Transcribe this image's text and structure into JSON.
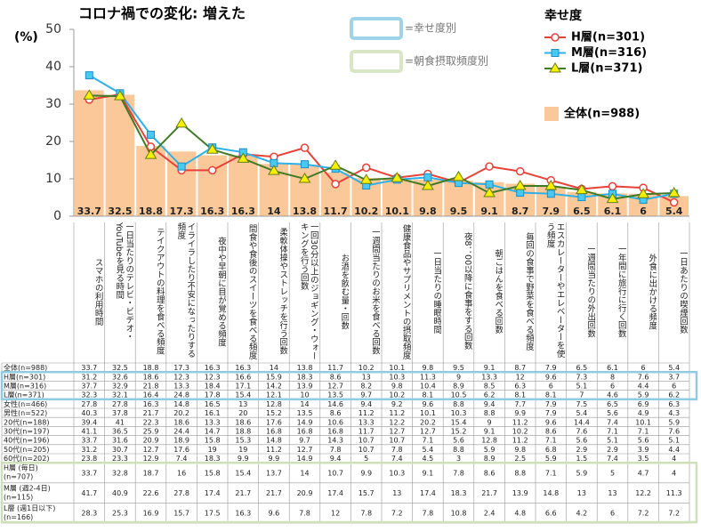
{
  "chart_data": {
    "type": "bar",
    "title": "コロナ禍での変化: 増えた",
    "y_label": "(%)",
    "categories": [
      "スマホの利用時間",
      "一日当たりのテレビ・ビデオ・YouTubeを見る時間",
      "テイクアウトの料理を食べる頻度",
      "イライラしたり不安になったりする頻度",
      "夜中や早朝に目が覚める頻度",
      "間食や食後のスイーツを食べる頻度",
      "柔軟体操やストレッチを行う回数",
      "一回30分以上のジョギング・ウォーキングを行う回数",
      "お酒を飲む量・回数",
      "一週間当たりのお米を食べる回数",
      "健康食品やサプリメントの摂取頻度",
      "一日当たりの睡眠時間",
      "夜8：00以降に食事をする回数",
      "朝ごはんを食べる回数",
      "毎回の食事で野菜を食べる頻度",
      "エスカレーターやエレベーターを使う頻度",
      "一週間当たりの外出回数",
      "一年間に旅行に行く回数",
      "外食に出かける頻度",
      "一日あたりの喫煙回数"
    ],
    "ylim": [
      0,
      50
    ],
    "yticks": [
      0,
      10,
      20,
      30,
      40,
      50
    ],
    "bar": {
      "name": "全体(n=988)",
      "color": "#fbc999",
      "values": [
        33.7,
        32.5,
        18.8,
        17.3,
        16.3,
        16.3,
        14,
        13.8,
        11.7,
        10.2,
        10.1,
        9.8,
        9.5,
        9.1,
        8.7,
        7.9,
        6.5,
        6.1,
        6,
        5.4
      ]
    },
    "legend_title": "幸せ度",
    "series": [
      {
        "name": "H層(n=301)",
        "color": "#e8413a",
        "marker": "circle",
        "values": [
          31.2,
          32.6,
          18.6,
          12.3,
          12.3,
          16.6,
          15.9,
          18.3,
          8.6,
          13,
          10.3,
          11.3,
          9,
          13.3,
          12,
          9.6,
          7.3,
          8,
          7.6,
          3.7
        ]
      },
      {
        "name": "M層(n=316)",
        "color": "#2fb0e6",
        "marker": "square",
        "values": [
          37.7,
          32.9,
          21.8,
          13.3,
          18.4,
          17.1,
          14.2,
          13.9,
          12.7,
          8.2,
          9.8,
          10.4,
          8.9,
          8.5,
          6.3,
          6,
          5.1,
          6,
          4.4,
          6
        ]
      },
      {
        "name": "L層(n=371)",
        "color": "#3f7a25",
        "marker": "triangle",
        "values": [
          32.3,
          32.1,
          16.4,
          24.8,
          17.8,
          15.4,
          12.1,
          10,
          13.5,
          9.7,
          10.2,
          8.1,
          10.5,
          6.2,
          8.1,
          8.1,
          7,
          4.6,
          5.9,
          6.2
        ]
      }
    ]
  },
  "annotations": [
    "=幸せ度別",
    "=朝食摂取頻度別"
  ],
  "table": {
    "rows": [
      {
        "label": "女性(n=466)",
        "values": [
          27.8,
          27.8,
          16.3,
          14.8,
          16.5,
          13,
          12.8,
          14,
          14.6,
          9.4,
          9.2,
          9.6,
          8.8,
          9.4,
          7.7,
          7.9,
          7.5,
          6.5,
          6.9,
          6.3
        ]
      },
      {
        "label": "男性(n=522)",
        "values": [
          40.3,
          37.8,
          21.7,
          20.2,
          16.1,
          20,
          15.2,
          13.5,
          8.6,
          11.2,
          11.2,
          10.1,
          10.3,
          8.8,
          9.9,
          7.9,
          5.4,
          5.6,
          4.9,
          4.3
        ]
      },
      {
        "label": "20代(n=188)",
        "values": [
          39.4,
          41,
          22.3,
          18.6,
          13.3,
          18.6,
          17.6,
          14.9,
          10.6,
          13.3,
          12.2,
          20.2,
          15.4,
          9,
          11.2,
          9.6,
          14.4,
          7.4,
          10.1,
          5.9
        ]
      },
      {
        "label": "30代(n=197)",
        "values": [
          41.1,
          36.5,
          25.9,
          24.4,
          14.7,
          18.8,
          16.8,
          16.8,
          16.8,
          11.7,
          12.7,
          12.7,
          15.2,
          9.1,
          10.2,
          8.6,
          7.6,
          7.1,
          7.1,
          7.6
        ]
      },
      {
        "label": "40代(n=196)",
        "values": [
          33.7,
          31.6,
          20.9,
          18.9,
          15.8,
          15.3,
          14.8,
          9.7,
          14.3,
          10.7,
          10.7,
          7.1,
          5.6,
          12.8,
          11.2,
          7.1,
          5.6,
          5.1,
          5.6,
          5.1
        ]
      },
      {
        "label": "50代(n=205)",
        "values": [
          31.2,
          30.7,
          12.7,
          17.6,
          19,
          19,
          11.2,
          12.7,
          7.8,
          10.7,
          7.8,
          5.4,
          8.8,
          5.9,
          9.8,
          6.8,
          2.9,
          2.9,
          3.9,
          4.4
        ]
      },
      {
        "label": "60代(n=202)",
        "values": [
          23.8,
          23.3,
          12.9,
          7.4,
          18.3,
          9.9,
          9.9,
          14.9,
          9.4,
          5,
          7.4,
          4.5,
          3,
          8.9,
          2.5,
          5.9,
          1.5,
          7.4,
          3.5,
          4
        ]
      },
      {
        "label": "H層 (毎日)",
        "n": "(n=707)",
        "values": [
          33.7,
          32.8,
          18.7,
          16,
          15.8,
          15.4,
          13.7,
          14,
          10.7,
          9.9,
          10.3,
          9.1,
          7.8,
          8.6,
          8.8,
          7.1,
          5.9,
          5,
          4.7,
          4
        ]
      },
      {
        "label": "M層 (週2-4日)",
        "n": "(n=115)",
        "values": [
          41.7,
          40.9,
          22.6,
          27.8,
          17.4,
          21.7,
          21.7,
          20.9,
          17.4,
          15.7,
          13,
          17.4,
          18.3,
          21.7,
          13.9,
          14.8,
          13,
          13,
          12.2,
          11.3
        ]
      },
      {
        "label": "L層 (週1日以下)",
        "n": "(n=166)",
        "values": [
          28.3,
          25.3,
          16.9,
          15.7,
          17.5,
          16.3,
          9.6,
          7.8,
          12,
          7.8,
          7.2,
          7.8,
          10.8,
          2.4,
          4.8,
          6.6,
          4.2,
          6,
          7.2,
          7.2
        ]
      }
    ]
  }
}
